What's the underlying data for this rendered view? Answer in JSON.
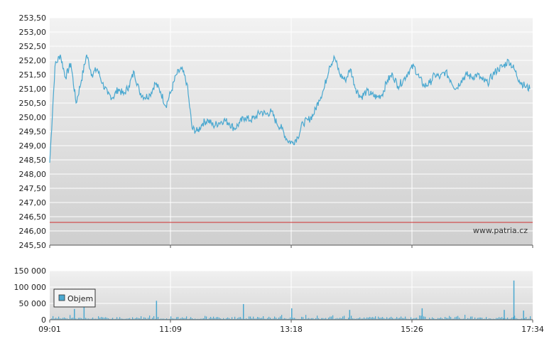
{
  "chart_data": [
    {
      "type": "line",
      "x_ticks": [
        "09:01",
        "11:09",
        "13:18",
        "15:26",
        "17:34"
      ],
      "y_ticks": [
        "245,50",
        "246,00",
        "246,50",
        "247,00",
        "247,50",
        "248,00",
        "248,50",
        "249,00",
        "249,50",
        "250,00",
        "250,50",
        "251,00",
        "251,50",
        "252,00",
        "252,50",
        "253,00",
        "253,50"
      ],
      "ylim": [
        245.5,
        253.5
      ],
      "reference_line": 246.3,
      "watermark": "www.patria.cz",
      "grid": true,
      "colors": {
        "line": "#4aa8d0",
        "reference": "#d03030",
        "grid": "#ffffff"
      },
      "series": [
        {
          "values": [
            248.4,
            251.8,
            252.2,
            251.4,
            251.9,
            250.5,
            251.3,
            252.2,
            251.5,
            251.7,
            251.2,
            250.8,
            250.7,
            251.0,
            250.8,
            251.1,
            251.6,
            250.9,
            250.7,
            250.8,
            251.2,
            250.9,
            250.4,
            250.9,
            251.5,
            251.7,
            251.2,
            249.6,
            249.5,
            249.8,
            249.9,
            249.7,
            249.8,
            249.9,
            249.8,
            249.6,
            249.8,
            250.0,
            249.9,
            250.0,
            250.2,
            250.1,
            250.2,
            249.8,
            249.6,
            249.2,
            249.1,
            249.3,
            249.8,
            249.9,
            250.1,
            250.6,
            251.0,
            251.8,
            252.1,
            251.5,
            251.3,
            251.7,
            251.0,
            250.7,
            250.9,
            250.8,
            250.7,
            250.8,
            251.3,
            251.5,
            251.1,
            251.3,
            251.6,
            251.8,
            251.4,
            251.1,
            251.2,
            251.5,
            251.4,
            251.6,
            251.3,
            251.0,
            251.3,
            251.5,
            251.4,
            251.5,
            251.3,
            251.2,
            251.5,
            251.7,
            251.8,
            252.0,
            251.7,
            251.3,
            251.1,
            251.0
          ]
        }
      ]
    },
    {
      "type": "bar",
      "y_ticks": [
        "0",
        "50 000",
        "100 000",
        "150 000"
      ],
      "ylim": [
        0,
        150000
      ],
      "legend": "Objem",
      "legend_placement": "left",
      "colors": {
        "bar": "#4aa8d0"
      },
      "spikes": [
        {
          "x": 0.05,
          "v": 33000
        },
        {
          "x": 0.07,
          "v": 55000
        },
        {
          "x": 0.22,
          "v": 58000
        },
        {
          "x": 0.4,
          "v": 48000
        },
        {
          "x": 0.5,
          "v": 35000
        },
        {
          "x": 0.62,
          "v": 30000
        },
        {
          "x": 0.77,
          "v": 35000
        },
        {
          "x": 0.94,
          "v": 30000
        },
        {
          "x": 0.96,
          "v": 120000
        },
        {
          "x": 0.98,
          "v": 28000
        }
      ]
    }
  ]
}
